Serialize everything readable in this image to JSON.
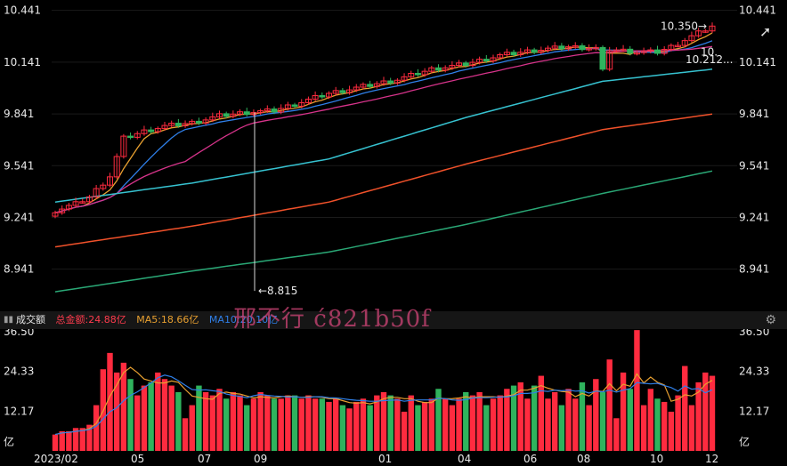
{
  "price_axis": {
    "ticks": [
      "10.441",
      "10.141",
      "9.841",
      "9.541",
      "9.241",
      "8.941"
    ],
    "max_label": "10.350",
    "last_label": "10.212...",
    "ma_label_partial": "10.",
    "min_label": "8.815"
  },
  "volume_header": {
    "title": "成交额",
    "total": "总金额:24.88亿",
    "ma5": "MA5:18.66亿",
    "ma10": "MA10:20.10亿",
    "watermark": "邢不行 ć821b50f"
  },
  "volume_axis": {
    "ticks": [
      "36.50",
      "24.33",
      "12.17"
    ],
    "unit": "亿"
  },
  "x_axis": {
    "labels": [
      "2023/02",
      "05",
      "07",
      "09",
      "01",
      "04",
      "06",
      "08",
      "10",
      "12"
    ]
  },
  "icons": [
    "settings-gear-icon",
    "volume-menu-icon",
    "cursor-arrow-icon"
  ],
  "colors": {
    "up": "#ff2b3f",
    "down": "#2fb35d",
    "ma5": "#e8a030",
    "ma10": "#2f7fe8",
    "ma20": "#d6338a",
    "ma60": "#36c2d0",
    "ma120": "#f0512a",
    "ma250": "#2aa876"
  },
  "chart_data": {
    "type": "candlestick",
    "ylim": [
      8.8,
      10.46
    ],
    "volume_ylim": [
      0,
      36.5
    ],
    "price_anchors": [
      [
        0,
        9.28
      ],
      [
        3,
        9.32
      ],
      [
        5,
        9.36
      ],
      [
        8,
        9.48
      ],
      [
        10,
        9.7
      ],
      [
        13,
        9.74
      ],
      [
        16,
        9.77
      ],
      [
        20,
        9.79
      ],
      [
        24,
        9.83
      ],
      [
        28,
        9.85
      ],
      [
        32,
        9.86
      ],
      [
        36,
        9.91
      ],
      [
        40,
        9.96
      ],
      [
        45,
        10.0
      ],
      [
        50,
        10.04
      ],
      [
        55,
        10.1
      ],
      [
        60,
        10.13
      ],
      [
        65,
        10.18
      ],
      [
        70,
        10.21
      ],
      [
        75,
        10.23
      ],
      [
        80,
        10.22
      ],
      [
        85,
        10.2
      ],
      [
        88,
        10.2
      ],
      [
        90,
        10.23
      ],
      [
        94,
        10.31
      ],
      [
        96,
        10.35
      ]
    ],
    "dip_index": 80,
    "dip_close": 10.1,
    "ma_lines": [
      {
        "name": "MA60",
        "points": [
          [
            0,
            9.33
          ],
          [
            20,
            9.44
          ],
          [
            40,
            9.58
          ],
          [
            60,
            9.82
          ],
          [
            80,
            10.03
          ],
          [
            96,
            10.1
          ]
        ]
      },
      {
        "name": "MA120",
        "points": [
          [
            0,
            9.07
          ],
          [
            20,
            9.19
          ],
          [
            40,
            9.33
          ],
          [
            60,
            9.55
          ],
          [
            80,
            9.75
          ],
          [
            96,
            9.84
          ]
        ]
      },
      {
        "name": "MA250",
        "points": [
          [
            0,
            8.81
          ],
          [
            20,
            8.93
          ],
          [
            40,
            9.04
          ],
          [
            60,
            9.2
          ],
          [
            80,
            9.38
          ],
          [
            96,
            9.51
          ]
        ]
      }
    ],
    "volumes": [
      5,
      6,
      6,
      7,
      7,
      8,
      14,
      25,
      30,
      24,
      27,
      22,
      17,
      20,
      21,
      24,
      22,
      20,
      18,
      10,
      14,
      20,
      18,
      17,
      19,
      16,
      18,
      17,
      14,
      16,
      18,
      17,
      16,
      16,
      17,
      17,
      16,
      17,
      16,
      16,
      15,
      16,
      14,
      13,
      15,
      16,
      14,
      17,
      18,
      17,
      16,
      12,
      17,
      14,
      15,
      16,
      19,
      16,
      14,
      16,
      18,
      17,
      18,
      14,
      16,
      17,
      19,
      20,
      21,
      16,
      20,
      23,
      16,
      18,
      14,
      19,
      16,
      21,
      14,
      22,
      18,
      28,
      10,
      24,
      19,
      37,
      14,
      19,
      16,
      15,
      12,
      17,
      26,
      14,
      21,
      24,
      23
    ]
  }
}
